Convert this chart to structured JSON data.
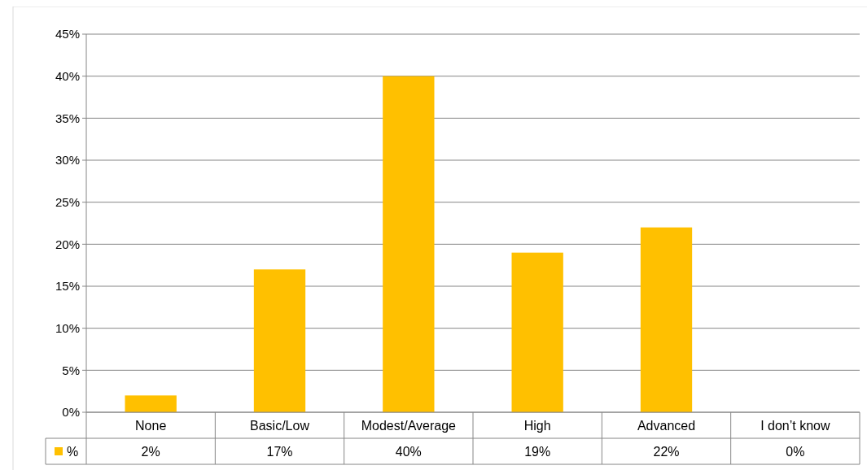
{
  "chart_data": {
    "type": "bar",
    "categories": [
      "None",
      "Basic/Low",
      "Modest/Average",
      "High",
      "Advanced",
      "I don’t know"
    ],
    "series": [
      {
        "name": "%",
        "color": "#ffc000",
        "values": [
          2,
          17,
          40,
          19,
          22,
          0
        ],
        "value_labels": [
          "2%",
          "17%",
          "40%",
          "19%",
          "22%",
          "0%"
        ]
      }
    ],
    "ylim": [
      0,
      45
    ],
    "yticks": [
      {
        "value": 0,
        "label": "0%"
      },
      {
        "value": 5,
        "label": "5%"
      },
      {
        "value": 10,
        "label": "10%"
      },
      {
        "value": 15,
        "label": "15%"
      },
      {
        "value": 20,
        "label": "20%"
      },
      {
        "value": 25,
        "label": "25%"
      },
      {
        "value": 30,
        "label": "30%"
      },
      {
        "value": 35,
        "label": "35%"
      },
      {
        "value": 40,
        "label": "40%"
      },
      {
        "value": 45,
        "label": "45%"
      }
    ],
    "grid": "y",
    "legend": "bottom left"
  }
}
